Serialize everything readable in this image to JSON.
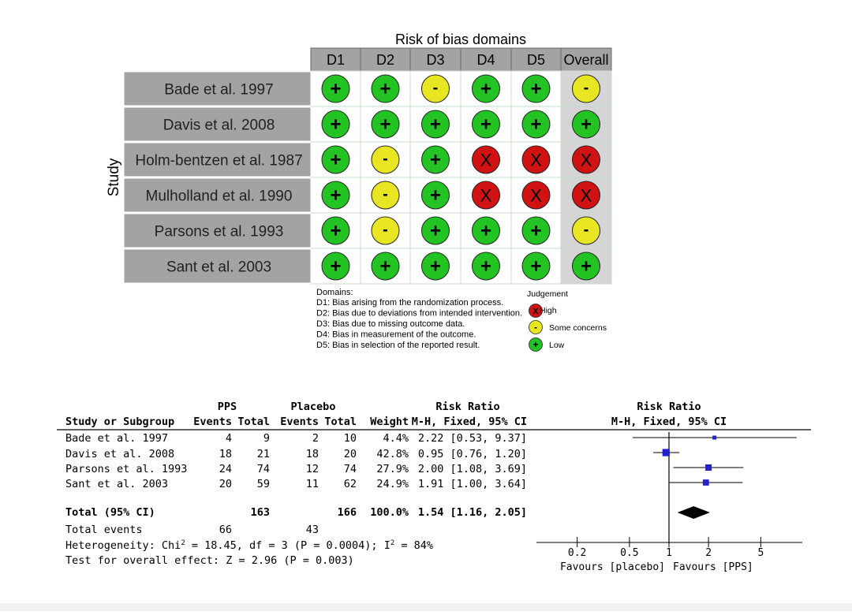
{
  "rob": {
    "title": "Risk of bias domains",
    "study_axis_label": "Study",
    "domains": [
      "D1",
      "D2",
      "D3",
      "D4",
      "D5",
      "Overall"
    ],
    "studies": [
      {
        "name": "Bade et al. 1997",
        "judgements": [
          "low",
          "low",
          "some",
          "low",
          "low",
          "some"
        ]
      },
      {
        "name": "Davis et al. 2008",
        "judgements": [
          "low",
          "low",
          "low",
          "low",
          "low",
          "low"
        ]
      },
      {
        "name": "Holm-bentzen et al. 1987",
        "judgements": [
          "low",
          "some",
          "low",
          "high",
          "high",
          "high"
        ]
      },
      {
        "name": "Mulholland et al. 1990",
        "judgements": [
          "low",
          "some",
          "low",
          "high",
          "high",
          "high"
        ]
      },
      {
        "name": "Parsons et al. 1993",
        "judgements": [
          "low",
          "some",
          "low",
          "low",
          "low",
          "some"
        ]
      },
      {
        "name": "Sant et al. 2003",
        "judgements": [
          "low",
          "low",
          "low",
          "low",
          "low",
          "low"
        ]
      }
    ],
    "symbols": {
      "low": "+",
      "some": "-",
      "high": "X"
    },
    "colors": {
      "low": "#22c322",
      "some": "#e8e622",
      "high": "#d01212",
      "header_bg": "#a3a3a3",
      "overall_bg": "#d5d5d5"
    },
    "legend": {
      "domains_title": "Domains:",
      "domain_descriptions": [
        "D1: Bias arising from the randomization process.",
        "D2: Bias due to deviations from intended intervention.",
        "D3: Bias due to missing outcome data.",
        "D4: Bias in measurement of the outcome.",
        "D5: Bias in selection of the reported result."
      ],
      "judgement_title": "Judgement",
      "items": [
        {
          "key": "high",
          "label": "High"
        },
        {
          "key": "some",
          "label": "Some concerns"
        },
        {
          "key": "low",
          "label": "Low"
        }
      ]
    }
  },
  "forest": {
    "group_headers": {
      "pps": "PPS",
      "placebo": "Placebo",
      "risk_ratio": "Risk Ratio",
      "plot_title": "Risk Ratio"
    },
    "column_headers": [
      "Study or Subgroup",
      "Events",
      "Total",
      "Events",
      "Total",
      "Weight",
      "M-H, Fixed, 95% CI",
      "M-H, Fixed, 95% CI"
    ],
    "rows": [
      {
        "study": "Bade et al. 1997",
        "pps_events": "4",
        "pps_total": "9",
        "pl_events": "2",
        "pl_total": "10",
        "weight": "4.4%",
        "ci_text": "2.22 [0.53, 9.37]"
      },
      {
        "study": "Davis et al. 2008",
        "pps_events": "18",
        "pps_total": "21",
        "pl_events": "18",
        "pl_total": "20",
        "weight": "42.8%",
        "ci_text": "0.95 [0.76, 1.20]"
      },
      {
        "study": "Parsons et al. 1993",
        "pps_events": "24",
        "pps_total": "74",
        "pl_events": "12",
        "pl_total": "74",
        "weight": "27.9%",
        "ci_text": "2.00 [1.08, 3.69]"
      },
      {
        "study": "Sant et al. 2003",
        "pps_events": "20",
        "pps_total": "59",
        "pl_events": "11",
        "pl_total": "62",
        "weight": "24.9%",
        "ci_text": "1.91 [1.00, 3.64]"
      }
    ],
    "total_row": {
      "label": "Total (95% CI)",
      "pps_total": "163",
      "pl_total": "166",
      "weight": "100.0%",
      "ci_text": "1.54 [1.16, 2.05]"
    },
    "total_events": {
      "label": "Total events",
      "pps": "66",
      "placebo": "43"
    },
    "heterogeneity": {
      "prefix": "Heterogeneity: Chi",
      "sup": "2",
      "middle": " = 18.45, df = 3 (P = 0.0004); I",
      "sup2": "2",
      "suffix": " = 84%"
    },
    "overall_effect": "Test for overall effect: Z = 2.96 (P = 0.003)",
    "axis_ticks": [
      "0.2",
      "0.5",
      "1",
      "2",
      "5"
    ],
    "favours_left": "Favours [placebo]",
    "favours_right": "Favours [PPS]",
    "marker_color": "#2222c8"
  },
  "chart_data": {
    "type": "scatter",
    "title": "Risk Ratio",
    "subtitle": "M-H, Fixed, 95% CI",
    "scale": "log",
    "xlim": [
      0.13,
      10
    ],
    "ticks": [
      0.2,
      0.5,
      1,
      2,
      5
    ],
    "null_line": 1,
    "points": [
      {
        "label": "Bade et al. 1997",
        "rr": 2.22,
        "lo": 0.53,
        "hi": 9.37,
        "weight": 4.4
      },
      {
        "label": "Davis et al. 2008",
        "rr": 0.95,
        "lo": 0.76,
        "hi": 1.2,
        "weight": 42.8
      },
      {
        "label": "Parsons et al. 1993",
        "rr": 2.0,
        "lo": 1.08,
        "hi": 3.69,
        "weight": 27.9
      },
      {
        "label": "Sant et al. 2003",
        "rr": 1.91,
        "lo": 1.0,
        "hi": 3.64,
        "weight": 24.9
      }
    ],
    "pooled": {
      "label": "Total (95% CI)",
      "rr": 1.54,
      "lo": 1.16,
      "hi": 2.05
    }
  }
}
